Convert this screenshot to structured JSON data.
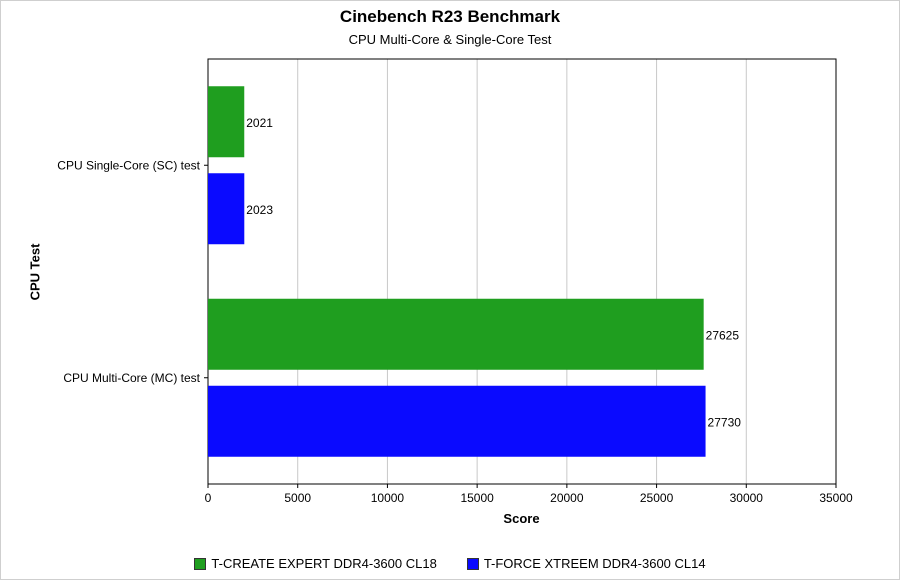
{
  "chart_data": {
    "type": "bar",
    "orientation": "horizontal",
    "title": "Cinebench R23 Benchmark",
    "subtitle": "CPU Multi-Core & Single-Core Test",
    "xlabel": "Score",
    "ylabel": "CPU Test",
    "categories": [
      "CPU Single-Core (SC) test",
      "CPU Multi-Core (MC) test"
    ],
    "series": [
      {
        "name": "T-CREATE EXPERT DDR4-3600 CL18",
        "color": "#1f9e1f",
        "values": [
          2021,
          27625
        ]
      },
      {
        "name": "T-FORCE XTREEM DDR4-3600 CL14",
        "color": "#0a0aff",
        "values": [
          2023,
          27730
        ]
      }
    ],
    "xlim": [
      0,
      35000
    ],
    "xticks": [
      "0",
      "5000",
      "10000",
      "15000",
      "20000",
      "25000",
      "30000",
      "35000"
    ],
    "grid": true,
    "legend_position": "bottom"
  }
}
